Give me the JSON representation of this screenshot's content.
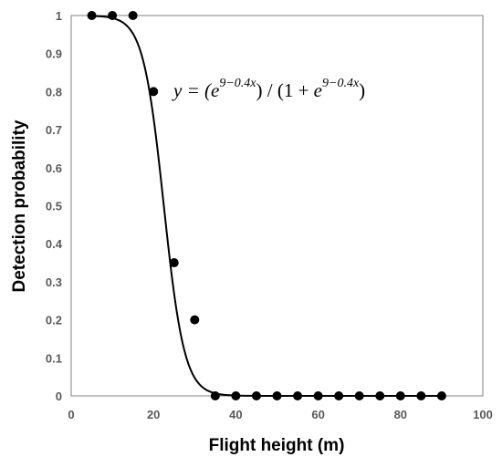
{
  "chart_data": {
    "type": "scatter",
    "xlabel": "Flight height (m)",
    "ylabel": "Detection probability",
    "xlim": [
      0,
      100
    ],
    "ylim": [
      0,
      1
    ],
    "xticks": [
      0,
      20,
      40,
      60,
      80,
      100
    ],
    "yticks": [
      0,
      0.1,
      0.2,
      0.3,
      0.4,
      0.5,
      0.6,
      0.7,
      0.8,
      0.9,
      1
    ],
    "xtick_labels": [
      "0",
      "20",
      "40",
      "60",
      "80",
      "100"
    ],
    "ytick_labels": [
      "0",
      "0.1",
      "0.2",
      "0.3",
      "0.4",
      "0.5",
      "0.6",
      "0.7",
      "0.8",
      "0.9",
      "1"
    ],
    "grid": false,
    "series": [
      {
        "type": "scatter",
        "x": [
          5,
          10,
          15,
          20,
          25,
          30,
          35,
          40,
          45,
          50,
          55,
          60,
          65,
          70,
          75,
          80,
          85,
          90
        ],
        "y": [
          1,
          1,
          1,
          0.8,
          0.35,
          0.2,
          0,
          0,
          0,
          0,
          0,
          0,
          0,
          0,
          0,
          0,
          0,
          0
        ],
        "color": "#000000"
      },
      {
        "type": "line",
        "function": "logistic",
        "intercept": 9,
        "slope": -0.4,
        "x_range": [
          5,
          90
        ],
        "color": "#000000"
      }
    ],
    "annotation": {
      "lhs": "y = (",
      "base1": "e",
      "exp1": "9−0.4x",
      "middle": ") / (1 + ",
      "base2": "e",
      "exp2": "9−0.4x",
      "rhs": ")"
    }
  }
}
